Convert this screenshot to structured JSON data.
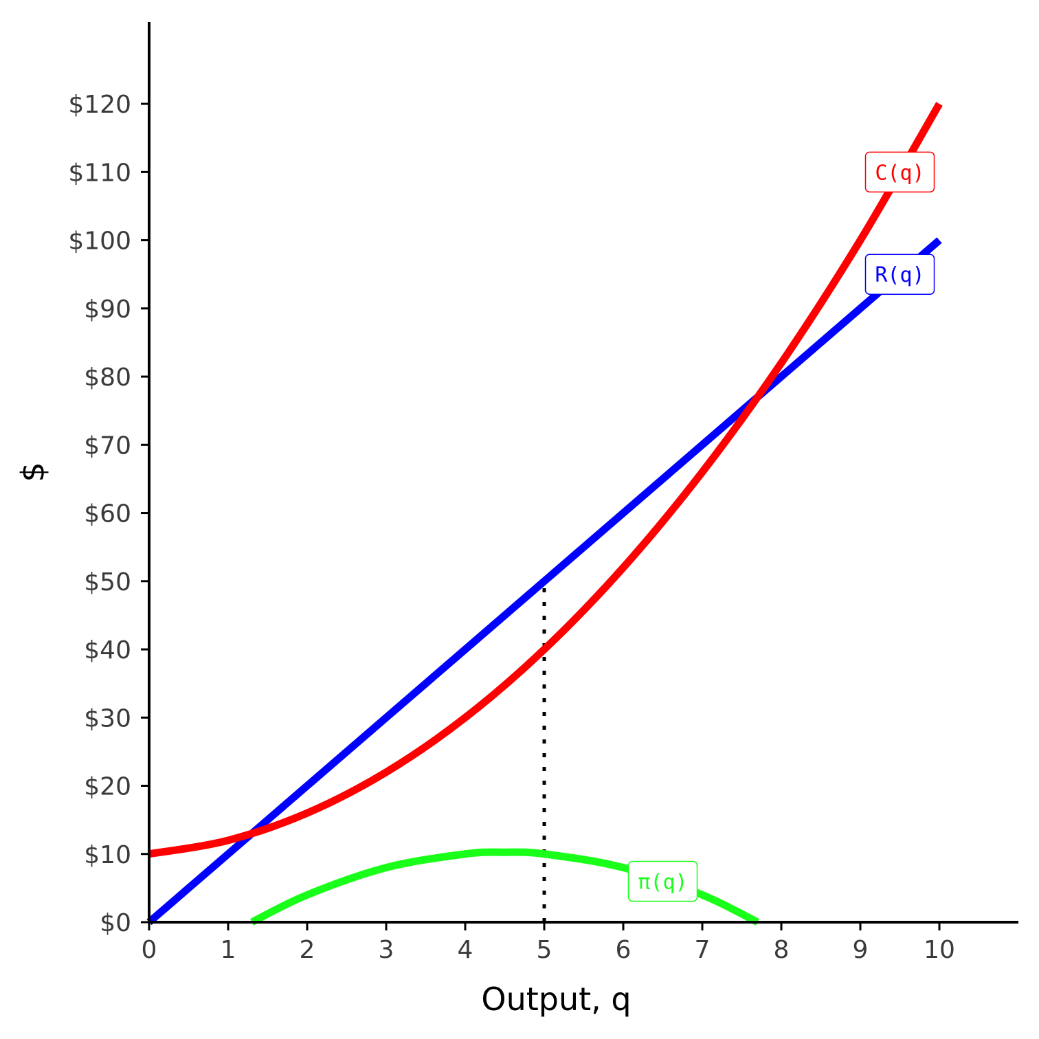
{
  "chart_data": {
    "type": "line",
    "xlabel": "Output, q",
    "ylabel": "$",
    "xlim": [
      0,
      11
    ],
    "ylim": [
      0,
      132
    ],
    "x_ticks": [
      0,
      1,
      2,
      3,
      4,
      5,
      6,
      7,
      8,
      9,
      10
    ],
    "x_tick_labels": [
      "0",
      "1",
      "2",
      "3",
      "4",
      "5",
      "6",
      "7",
      "8",
      "9",
      "10"
    ],
    "y_ticks": [
      0,
      10,
      20,
      30,
      40,
      50,
      60,
      70,
      80,
      90,
      100,
      110,
      120
    ],
    "y_tick_labels": [
      "$0",
      "$10",
      "$20",
      "$30",
      "$40",
      "$50",
      "$60",
      "$70",
      "$80",
      "$90",
      "$100",
      "$110",
      "$120"
    ],
    "grid": false,
    "series": [
      {
        "name": "R(q)",
        "color": "#0000ff",
        "x": [
          0,
          1,
          2,
          3,
          4,
          5,
          6,
          7,
          8,
          9,
          10
        ],
        "y": [
          0,
          10,
          20,
          30,
          40,
          50,
          60,
          70,
          80,
          90,
          100
        ],
        "label_at": [
          9.5,
          95
        ]
      },
      {
        "name": "C(q)",
        "color": "#ff0000",
        "x": [
          0,
          1,
          2,
          3,
          4,
          5,
          6,
          7,
          8,
          9,
          10
        ],
        "y": [
          10,
          12,
          16,
          22,
          30,
          40,
          52,
          66,
          82,
          100,
          120
        ],
        "label_at": [
          9.5,
          110
        ]
      },
      {
        "name": "π(q)",
        "color": "#1aff1a",
        "x": [
          1.3,
          2,
          3,
          4,
          4.5,
          5,
          6,
          7,
          7.7
        ],
        "y": [
          0,
          4,
          8,
          10,
          10.25,
          10,
          8,
          4,
          0
        ],
        "label_at": [
          6.5,
          6
        ]
      }
    ],
    "reference_lines": [
      {
        "type": "vertical",
        "x": 5,
        "y_from": 0,
        "y_to": 50,
        "style": "dotted",
        "color": "#000000"
      }
    ]
  }
}
